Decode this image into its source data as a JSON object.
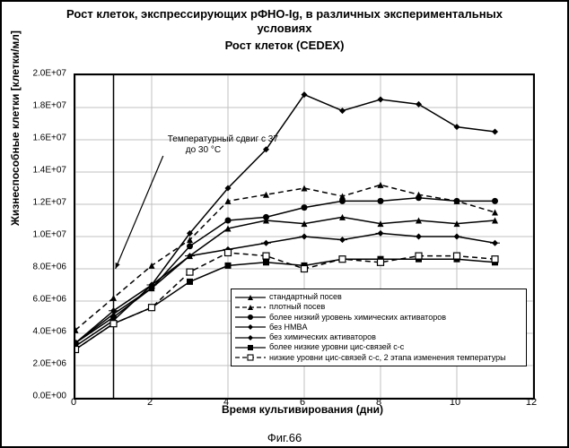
{
  "titles": {
    "main": "Рост клеток, экспрессирующих рФНО-Ig, в различных экспериментальных условиях",
    "sub": "Рост клеток (CEDEX)",
    "ylabel": "Жизнеспособные клетки [клетки/мл]",
    "xlabel": "Время культивирования (дни)",
    "figure": "Фиг.66"
  },
  "annotation": {
    "line1": "Температурный сдвиг с 37",
    "line2": "до 30 °С"
  },
  "chart": {
    "type": "line",
    "xlim": [
      0,
      12
    ],
    "ylim": [
      0,
      20000000.0
    ],
    "xtick_step": 2,
    "ytick_step": 2000000.0,
    "ytick_labels": [
      "0.0E+00",
      "2.0E+06",
      "4.0E+06",
      "6.0E+06",
      "8.0E+06",
      "1.0E+07",
      "1.2E+07",
      "1.4E+07",
      "1.6E+07",
      "1.8E+07",
      "2.0E+07"
    ],
    "xtick_labels": [
      "0",
      "2",
      "4",
      "6",
      "8",
      "10",
      "12"
    ],
    "vline_x": 1,
    "grid_color": "#c0c0c0",
    "background_color": "#ffffff",
    "line_color": "#000000",
    "series": [
      {
        "id": "std",
        "label": "стандартный посев",
        "marker": "triangle-up",
        "dash": "solid",
        "x": [
          0,
          1,
          2,
          3,
          4,
          5,
          6,
          7,
          8,
          9,
          10,
          11
        ],
        "y": [
          3400000.0,
          5200000.0,
          6800000.0,
          8800000.0,
          10500000.0,
          11000000.0,
          10800000.0,
          11200000.0,
          10800000.0,
          11000000.0,
          10800000.0,
          11000000.0
        ]
      },
      {
        "id": "dense",
        "label": "плотный посев",
        "marker": "triangle-up",
        "dash": "dash",
        "x": [
          0,
          1,
          2,
          3,
          4,
          5,
          6,
          7,
          8,
          9,
          10,
          11
        ],
        "y": [
          4200000.0,
          6200000.0,
          8200000.0,
          9800000.0,
          12200000.0,
          12600000.0,
          13000000.0,
          12500000.0,
          13200000.0,
          12600000.0,
          12200000.0,
          11500000.0
        ]
      },
      {
        "id": "lowact",
        "label": "более низкий уровень химических активаторов",
        "marker": "circle",
        "dash": "solid",
        "x": [
          0,
          1,
          2,
          3,
          4,
          5,
          6,
          7,
          8,
          9,
          10,
          11
        ],
        "y": [
          3400000.0,
          5000000.0,
          6800000.0,
          9400000.0,
          11000000.0,
          11200000.0,
          11800000.0,
          12200000.0,
          12200000.0,
          12400000.0,
          12200000.0,
          12200000.0
        ]
      },
      {
        "id": "nohmba",
        "label": "без HMBA",
        "marker": "diamond-hline",
        "dash": "solid",
        "x": [
          0,
          1,
          2,
          3,
          4,
          5,
          6,
          7,
          8,
          9,
          10,
          11
        ],
        "y": [
          3400000.0,
          5400000.0,
          7000000.0,
          8800000.0,
          9200000.0,
          9600000.0,
          10000000.0,
          9800000.0,
          10200000.0,
          10000000.0,
          10000000.0,
          9600000.0
        ]
      },
      {
        "id": "noact",
        "label": "без химических активаторов",
        "marker": "diamond",
        "dash": "solid",
        "x": [
          0,
          1,
          2,
          3,
          4,
          5,
          6,
          7,
          8,
          9,
          10,
          11
        ],
        "y": [
          3200000.0,
          4800000.0,
          7000000.0,
          10200000.0,
          13000000.0,
          15400000.0,
          18800000.0,
          17800000.0,
          18500000.0,
          18200000.0,
          16800000.0,
          16500000.0
        ]
      },
      {
        "id": "lowcis",
        "label": "более низкие уровни цис-связей с-с",
        "marker": "square",
        "dash": "solid",
        "x": [
          0,
          1,
          2,
          3,
          4,
          5,
          6,
          7,
          8,
          9,
          10,
          11
        ],
        "y": [
          3000000.0,
          4600000.0,
          5600000.0,
          7200000.0,
          8200000.0,
          8400000.0,
          8200000.0,
          8600000.0,
          8600000.0,
          8600000.0,
          8600000.0,
          8400000.0
        ]
      },
      {
        "id": "lowcis2",
        "label": "низкие уровни цис-связей с-с, 2 этапа изменения температуры",
        "marker": "square-open",
        "dash": "dash",
        "x": [
          0,
          1,
          2,
          3,
          4,
          5,
          6,
          7,
          8,
          9,
          10,
          11
        ],
        "y": [
          3000000.0,
          4600000.0,
          5600000.0,
          7800000.0,
          9000000.0,
          8800000.0,
          8000000.0,
          8600000.0,
          8400000.0,
          8800000.0,
          8800000.0,
          8600000.0
        ]
      }
    ],
    "annotation_arrow": {
      "head_x": 1.05,
      "head_y": 8000000.0,
      "tail_x": 2.3,
      "tail_y": 15000000.0
    }
  }
}
